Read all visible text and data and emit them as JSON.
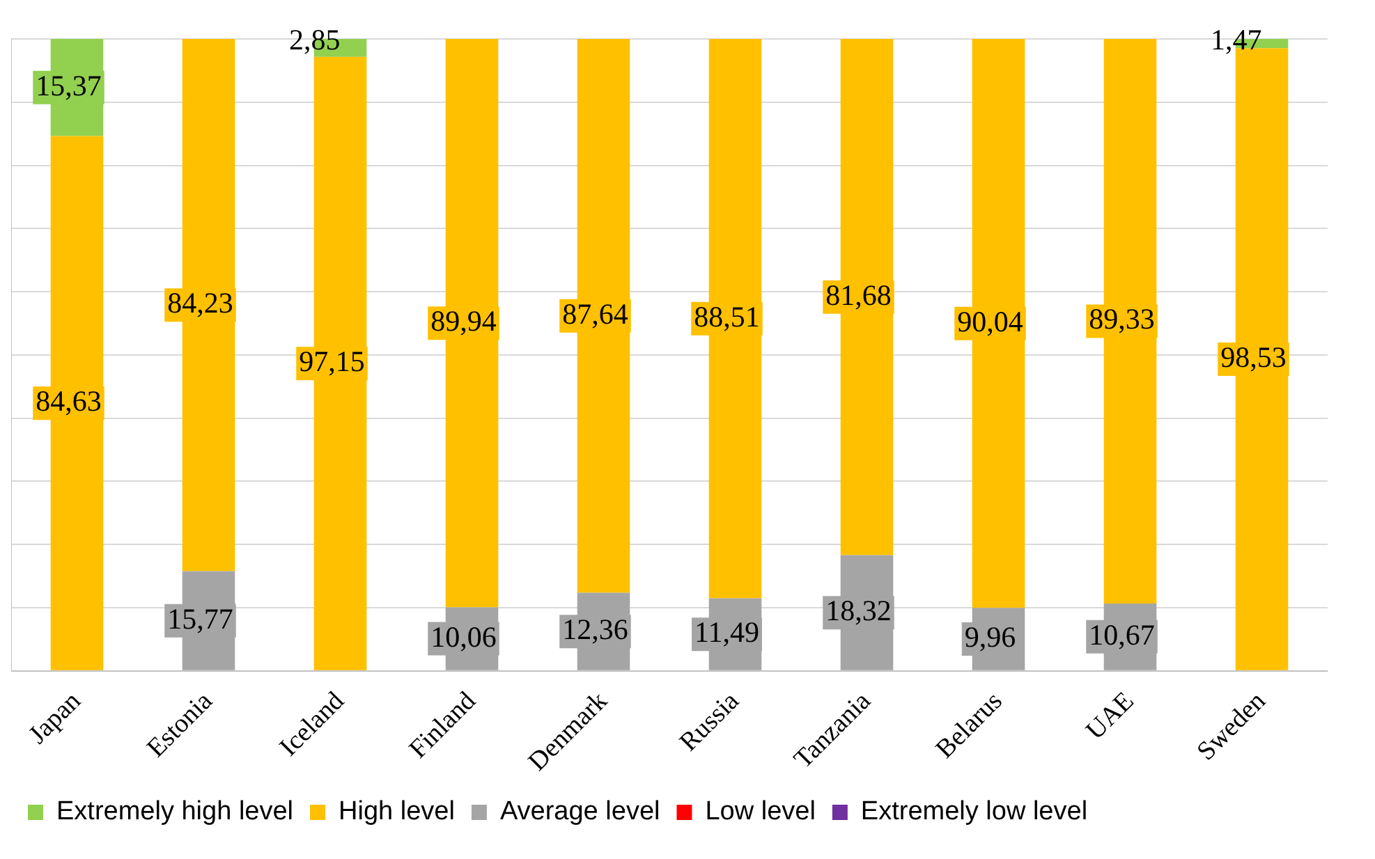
{
  "chart_data": {
    "type": "bar",
    "stacked": true,
    "categories": [
      "Japan",
      "Estonia",
      "Iceland",
      "Finland",
      "Denmark",
      "Russia",
      "Tanzania",
      "Belarus",
      "UAE",
      "Sweden"
    ],
    "series": [
      {
        "name": "Extremely low level",
        "color": "#7030a0",
        "values": [
          null,
          null,
          null,
          null,
          null,
          null,
          null,
          null,
          null,
          null
        ]
      },
      {
        "name": "Low level",
        "color": "#ff0000",
        "values": [
          null,
          null,
          null,
          null,
          null,
          null,
          null,
          null,
          null,
          null
        ]
      },
      {
        "name": "Average level",
        "color": "#a5a5a5",
        "values": [
          null,
          15.77,
          null,
          10.06,
          12.36,
          11.49,
          18.32,
          9.96,
          10.67,
          null
        ],
        "value_labels": [
          null,
          "15,77",
          null,
          "10,06",
          "12,36",
          "11,49",
          "18,32",
          "9,96",
          "10,67",
          null
        ]
      },
      {
        "name": "High level",
        "color": "#ffc000",
        "values": [
          84.63,
          84.23,
          97.15,
          89.94,
          87.64,
          88.51,
          81.68,
          90.04,
          89.33,
          98.53
        ],
        "value_labels": [
          "84,63",
          "84,23",
          "97,15",
          "89,94",
          "87,64",
          "88,51",
          "81,68",
          "90,04",
          "89,33",
          "98,53"
        ]
      },
      {
        "name": "Extremely high level",
        "color": "#92d050",
        "values": [
          15.37,
          null,
          2.85,
          null,
          null,
          null,
          null,
          null,
          null,
          1.47
        ],
        "value_labels": [
          "15,37",
          null,
          "2,85",
          null,
          null,
          null,
          null,
          null,
          null,
          "1,47"
        ]
      }
    ],
    "ylim": [
      0,
      100
    ],
    "yticks": [
      {
        "value": 0,
        "label": null
      },
      {
        "value": 10,
        "label": null
      },
      {
        "value": 20,
        "label": null
      },
      {
        "value": 30,
        "label": null
      },
      {
        "value": 40,
        "label": null
      },
      {
        "value": 50,
        "label": null
      },
      {
        "value": 60,
        "label": null
      },
      {
        "value": 70,
        "label": null
      },
      {
        "value": 80,
        "label": null
      },
      {
        "value": 90,
        "label": null
      },
      {
        "value": 100,
        "label": null
      }
    ],
    "grid": "y",
    "tick_labels": "x",
    "legend": "bottom"
  }
}
